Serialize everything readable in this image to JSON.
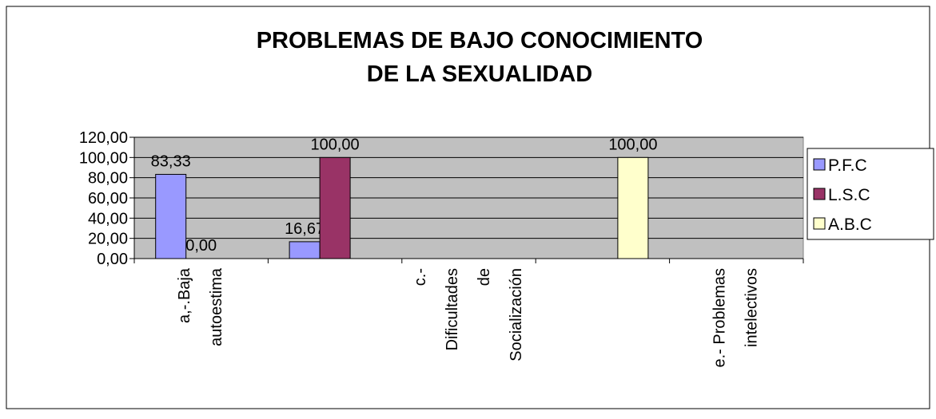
{
  "chart_data": {
    "type": "bar",
    "title": [
      "PROBLEMAS DE BAJO CONOCIMIENTO",
      "DE LA SEXUALIDAD"
    ],
    "categories": [
      [
        "a,-.Baja",
        "autoestima"
      ],
      null,
      [
        "c.-",
        "Dificultades",
        "de",
        "Socialización"
      ],
      null,
      [
        "e.- Problemas",
        "intelectivos"
      ]
    ],
    "series": [
      {
        "name": "P.F.C",
        "color": "#9999ff",
        "values": [
          83.33,
          16.67,
          null,
          null,
          null
        ],
        "value_labels": [
          "83,33",
          "16,67",
          null,
          null,
          null
        ]
      },
      {
        "name": "L.S.C",
        "color": "#993366",
        "values": [
          0,
          100,
          null,
          null,
          null
        ],
        "value_labels": [
          "0,00",
          "100,00",
          null,
          null,
          null
        ]
      },
      {
        "name": "A.B.C",
        "color": "#ffffcc",
        "values": [
          null,
          null,
          null,
          100,
          null
        ],
        "value_labels": [
          null,
          null,
          null,
          "100,00",
          null
        ]
      }
    ],
    "ylim": [
      0,
      120
    ],
    "yticks": [
      {
        "value": 0,
        "label": "0,00"
      },
      {
        "value": 20,
        "label": "20,00"
      },
      {
        "value": 40,
        "label": "40,00"
      },
      {
        "value": 60,
        "label": "60,00"
      },
      {
        "value": 80,
        "label": "80,00"
      },
      {
        "value": 100,
        "label": "100,00"
      },
      {
        "value": 120,
        "label": "120,00"
      }
    ],
    "grid": true,
    "legend": "right"
  }
}
